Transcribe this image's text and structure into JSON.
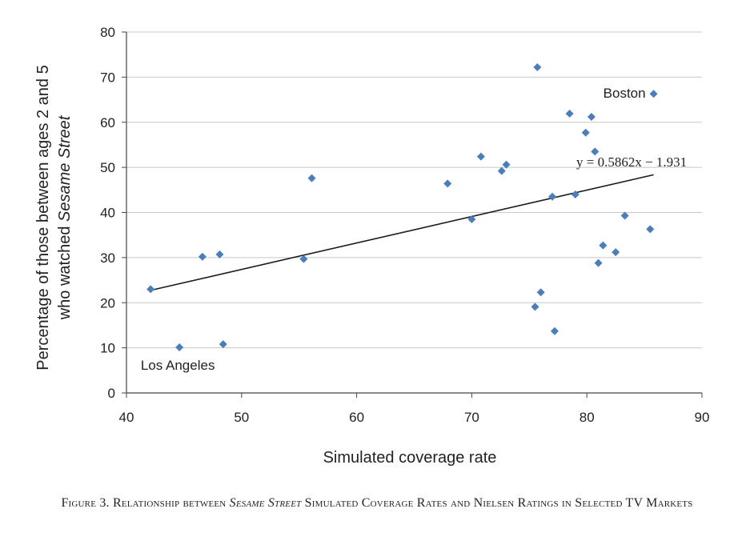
{
  "chart_data": {
    "type": "scatter",
    "xlabel": "Simulated coverage rate",
    "ylabel_line1": "Percentage of those between ages 2 and 5",
    "ylabel_line2_pre": "who watched ",
    "ylabel_line2_italic": "Sesame Street",
    "xlim": [
      40,
      90
    ],
    "ylim": [
      0,
      80
    ],
    "x_ticks": [
      40,
      50,
      60,
      70,
      80,
      90
    ],
    "y_ticks": [
      0,
      10,
      20,
      30,
      40,
      50,
      60,
      70,
      80
    ],
    "grid": "horizontal",
    "marker_color": "#4a7ebb",
    "points": [
      {
        "x": 42.1,
        "y": 23.0
      },
      {
        "x": 44.6,
        "y": 10.1
      },
      {
        "x": 46.6,
        "y": 30.2
      },
      {
        "x": 48.1,
        "y": 30.7
      },
      {
        "x": 48.4,
        "y": 10.8
      },
      {
        "x": 55.4,
        "y": 29.7
      },
      {
        "x": 56.1,
        "y": 47.6
      },
      {
        "x": 67.9,
        "y": 46.4
      },
      {
        "x": 70.0,
        "y": 38.5
      },
      {
        "x": 70.8,
        "y": 52.4
      },
      {
        "x": 72.6,
        "y": 49.2
      },
      {
        "x": 73.0,
        "y": 50.6
      },
      {
        "x": 75.5,
        "y": 19.1
      },
      {
        "x": 75.7,
        "y": 72.2
      },
      {
        "x": 76.0,
        "y": 22.3
      },
      {
        "x": 77.0,
        "y": 43.5
      },
      {
        "x": 77.2,
        "y": 13.7
      },
      {
        "x": 78.5,
        "y": 61.9
      },
      {
        "x": 79.0,
        "y": 44.0
      },
      {
        "x": 79.9,
        "y": 57.7
      },
      {
        "x": 80.4,
        "y": 61.2
      },
      {
        "x": 80.7,
        "y": 53.5
      },
      {
        "x": 81.0,
        "y": 28.8
      },
      {
        "x": 81.4,
        "y": 32.7
      },
      {
        "x": 82.5,
        "y": 31.2
      },
      {
        "x": 83.3,
        "y": 39.3
      },
      {
        "x": 85.5,
        "y": 36.3
      },
      {
        "x": 85.8,
        "y": 66.3
      }
    ],
    "trendline": {
      "slope": 0.5862,
      "intercept": -1.931,
      "x_range": [
        42.1,
        85.8
      ]
    },
    "equation_label": "y = 0.5862x − 1.931",
    "annotations": [
      {
        "text": "Boston",
        "x": 85.8,
        "y": 66.3
      },
      {
        "text": "Los Angeles",
        "x": 44.6,
        "y": 10.1
      }
    ]
  },
  "caption": {
    "pre": "Figure 3. Relationship between ",
    "italic": "Sesame Street",
    "post": " Simulated Coverage Rates and Nielsen Ratings in Selected TV Markets"
  }
}
